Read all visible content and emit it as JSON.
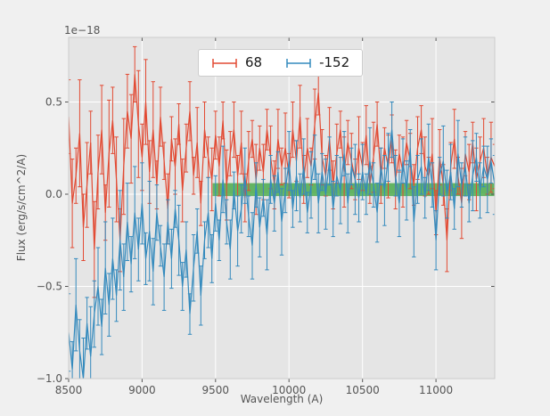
{
  "figure": {
    "offset_label": "1e−18",
    "xlabel": "Wavelength (A)",
    "ylabel": "Flux (erg/s/cm^2/A)",
    "background": "#f0f0f0",
    "axes_background": "#e5e5e5",
    "grid_color": "#ffffff",
    "tick_color": "#555555"
  },
  "legend": {
    "position": "upper center",
    "entries": [
      {
        "label": "68",
        "color": "#E24A33"
      },
      {
        "label": "-152",
        "color": "#348ABD"
      }
    ]
  },
  "chart_data": {
    "type": "line",
    "title": "",
    "xlabel": "Wavelength (A)",
    "ylabel": "Flux (erg/s/cm^2/A)",
    "y_offset_factor": "1e-18",
    "xlim": [
      8500,
      11400
    ],
    "ylim": [
      -1.0,
      0.85
    ],
    "xticks": [
      8500,
      9000,
      9500,
      10000,
      10500,
      11000
    ],
    "xtick_labels": [
      "8500",
      "9000",
      "9500",
      "10000",
      "10500",
      "11000"
    ],
    "yticks": [
      -1.0,
      -0.5,
      0.0,
      0.5
    ],
    "ytick_labels": [
      "−1.0",
      "−0.5",
      "0.0",
      "0.5"
    ],
    "grid": true,
    "legend_position": "upper center",
    "band": {
      "xmin": 9480,
      "xmax": 11400,
      "ymin": -0.01,
      "ymax": 0.06,
      "color": "#2ca02c",
      "alpha": 0.7
    },
    "x_start": 8500,
    "x_step": 25,
    "series": [
      {
        "name": "68",
        "color": "#E24A33",
        "y": [
          0.42,
          -0.05,
          0.1,
          0.33,
          -0.18,
          0.05,
          0.28,
          -0.3,
          0.12,
          0.35,
          -0.1,
          0.22,
          0.4,
          0.08,
          -0.25,
          0.15,
          0.45,
          0.3,
          0.65,
          0.38,
          0.2,
          0.5,
          0.12,
          0.35,
          0.05,
          0.42,
          0.18,
          -0.08,
          0.3,
          0.15,
          0.38,
          0.02,
          0.25,
          0.45,
          0.1,
          0.28,
          -0.05,
          0.35,
          0.2,
          0.08,
          0.32,
          0.15,
          0.4,
          0.05,
          0.22,
          0.35,
          0.1,
          0.28,
          -0.02,
          0.18,
          0.3,
          0.08,
          0.25,
          0.12,
          0.35,
          0.2,
          0.05,
          0.3,
          0.15,
          0.25,
          0.1,
          0.35,
          0.18,
          0.42,
          0.08,
          0.25,
          0.15,
          0.38,
          0.55,
          0.2,
          0.1,
          0.3,
          0.05,
          0.22,
          0.35,
          0.12,
          0.28,
          0.18,
          0.08,
          0.25,
          0.15,
          0.32,
          0.05,
          0.2,
          0.38,
          0.1,
          0.25,
          0.15,
          0.3,
          0.08,
          0.22,
          0.12,
          0.28,
          0.18,
          0.05,
          0.25,
          0.35,
          0.15,
          0.1,
          0.22,
          -0.1,
          0.2,
          0.05,
          -0.25,
          0.15,
          0.3,
          0.1,
          -0.05,
          0.22,
          0.12,
          0.28,
          0.08,
          0.18,
          0.25,
          0.1,
          0.2,
          0.15
        ],
        "yerr": [
          0.2,
          0.24,
          0.15,
          0.29,
          0.18,
          0.23,
          0.17,
          0.26,
          0.2,
          0.24,
          0.15,
          0.29,
          0.18,
          0.23,
          0.17,
          0.26,
          0.2,
          0.24,
          0.15,
          0.29,
          0.18,
          0.23,
          0.17,
          0.26,
          0.13,
          0.16,
          0.1,
          0.19,
          0.12,
          0.15,
          0.11,
          0.17,
          0.13,
          0.16,
          0.1,
          0.19,
          0.12,
          0.15,
          0.11,
          0.17,
          0.13,
          0.16,
          0.1,
          0.19,
          0.12,
          0.15,
          0.11,
          0.17,
          0.13,
          0.16,
          0.1,
          0.19,
          0.12,
          0.15,
          0.11,
          0.17,
          0.13,
          0.16,
          0.1,
          0.19,
          0.12,
          0.15,
          0.11,
          0.17,
          0.13,
          0.16,
          0.1,
          0.19,
          0.12,
          0.15,
          0.11,
          0.17,
          0.13,
          0.16,
          0.1,
          0.19,
          0.12,
          0.15,
          0.11,
          0.17,
          0.13,
          0.16,
          0.1,
          0.19,
          0.12,
          0.15,
          0.11,
          0.17,
          0.13,
          0.16,
          0.1,
          0.19,
          0.12,
          0.15,
          0.11,
          0.17,
          0.13,
          0.16,
          0.1,
          0.19,
          0.12,
          0.15,
          0.11,
          0.17,
          0.13,
          0.16,
          0.1,
          0.19,
          0.12,
          0.15,
          0.11,
          0.17,
          0.13,
          0.16,
          0.1,
          0.19,
          0.12
        ]
      },
      {
        "name": "-152",
        "color": "#348ABD",
        "y": [
          -0.75,
          -0.95,
          -0.6,
          -0.85,
          -1.0,
          -0.7,
          -0.88,
          -0.65,
          -0.5,
          -0.72,
          -0.4,
          -0.6,
          -0.35,
          -0.55,
          -0.25,
          -0.45,
          -0.15,
          -0.38,
          -0.1,
          -0.3,
          -0.05,
          -0.35,
          -0.2,
          -0.42,
          -0.1,
          -0.28,
          -0.45,
          -0.15,
          -0.35,
          -0.08,
          -0.25,
          -0.5,
          -0.3,
          -0.65,
          -0.4,
          -0.2,
          -0.55,
          -0.25,
          -0.1,
          -0.35,
          -0.05,
          -0.25,
          0.08,
          -0.15,
          -0.3,
          0.02,
          -0.2,
          -0.08,
          0.1,
          -0.12,
          -0.28,
          0.05,
          -0.18,
          -0.02,
          -0.22,
          0.08,
          -0.05,
          0.12,
          -0.15,
          0.02,
          0.18,
          -0.08,
          0.1,
          -0.02,
          0.15,
          -0.1,
          0.05,
          0.2,
          -0.05,
          0.12,
          0.0,
          0.18,
          -0.08,
          0.1,
          0.02,
          0.22,
          -0.05,
          0.15,
          0.08,
          -0.02,
          0.12,
          0.0,
          0.18,
          0.05,
          -0.1,
          0.15,
          0.02,
          0.2,
          0.35,
          0.1,
          -0.05,
          0.18,
          0.02,
          0.25,
          -0.15,
          0.08,
          0.15,
          -0.02,
          0.2,
          0.05,
          -0.25,
          0.1,
          0.18,
          0.0,
          0.12,
          -0.08,
          0.22,
          0.05,
          0.15,
          -0.05,
          0.1,
          0.2,
          0.02,
          0.15,
          0.08,
          0.18,
          0.05
        ],
        "yerr": [
          0.21,
          0.15,
          0.25,
          0.17,
          0.22,
          0.14,
          0.27,
          0.18,
          0.21,
          0.15,
          0.25,
          0.17,
          0.22,
          0.14,
          0.27,
          0.18,
          0.21,
          0.15,
          0.25,
          0.17,
          0.22,
          0.14,
          0.27,
          0.18,
          0.15,
          0.11,
          0.18,
          0.12,
          0.16,
          0.1,
          0.19,
          0.13,
          0.15,
          0.11,
          0.18,
          0.12,
          0.16,
          0.1,
          0.19,
          0.13,
          0.15,
          0.11,
          0.18,
          0.12,
          0.16,
          0.1,
          0.19,
          0.13,
          0.15,
          0.11,
          0.18,
          0.12,
          0.16,
          0.1,
          0.19,
          0.13,
          0.15,
          0.11,
          0.18,
          0.12,
          0.16,
          0.1,
          0.19,
          0.13,
          0.15,
          0.11,
          0.18,
          0.12,
          0.16,
          0.1,
          0.19,
          0.13,
          0.15,
          0.11,
          0.18,
          0.12,
          0.16,
          0.1,
          0.19,
          0.13,
          0.15,
          0.11,
          0.18,
          0.12,
          0.16,
          0.1,
          0.19,
          0.13,
          0.15,
          0.11,
          0.18,
          0.12,
          0.16,
          0.1,
          0.19,
          0.13,
          0.15,
          0.11,
          0.18,
          0.12,
          0.16,
          0.1,
          0.19,
          0.13,
          0.15,
          0.11,
          0.18,
          0.12,
          0.16,
          0.1,
          0.19,
          0.13,
          0.15,
          0.11,
          0.18,
          0.12,
          0.16
        ]
      }
    ]
  }
}
